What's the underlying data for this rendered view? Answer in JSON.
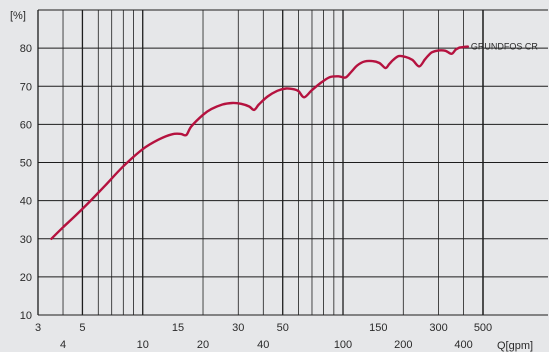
{
  "chart_data": {
    "type": "line",
    "x_scale": "log",
    "xlim": [
      3,
      500
    ],
    "ylim": [
      10,
      90
    ],
    "grid": true,
    "ylabel": "[%]",
    "xlabel": "Q[gpm]",
    "y_ticks": [
      10,
      20,
      30,
      40,
      50,
      60,
      70,
      80
    ],
    "x_ticks": [
      3,
      4,
      5,
      10,
      15,
      20,
      30,
      40,
      50,
      100,
      150,
      200,
      300,
      400,
      500
    ],
    "x_ticks_high": [
      "3",
      "5",
      "15",
      "30",
      "50",
      "150",
      "300",
      "500"
    ],
    "x_ticks_low": [
      "4",
      "10",
      "20",
      "40",
      "100",
      "200",
      "400"
    ],
    "series": [
      {
        "name": "GRUNDFOS CR",
        "color": "#b5123f",
        "x": [
          3.5,
          4.0,
          4.6,
          5.5,
          6.5,
          8.0,
          10.0,
          12.0,
          14.0,
          15.5,
          16.5,
          17.5,
          20.0,
          22.0,
          25.0,
          28.0,
          31.0,
          34.0,
          36.0,
          38.0,
          42.0,
          47.0,
          52.0,
          57.0,
          60.0,
          64.0,
          70.0,
          78.0,
          86.0,
          95.0,
          103.0,
          110.0,
          118.0,
          128.0,
          140.0,
          152.0,
          163.0,
          170.0,
          178.0,
          190.0,
          205.0,
          222.0,
          240.0,
          256.0,
          264.0,
          278.0,
          300.0,
          325.0,
          348.0,
          365.0,
          380.0,
          400.0,
          420.0
        ],
        "y": [
          30,
          33,
          36,
          40,
          44,
          49,
          53.5,
          56,
          57.4,
          57.5,
          57.2,
          59.5,
          62.5,
          64,
          65.2,
          65.6,
          65.4,
          64.7,
          63.8,
          65.2,
          67.3,
          68.8,
          69.4,
          69.2,
          68.7,
          67.1,
          69,
          71,
          72.4,
          72.6,
          72.3,
          73.8,
          75.5,
          76.5,
          76.6,
          76.1,
          74.8,
          75.8,
          76.9,
          77.9,
          77.7,
          76.9,
          75.2,
          77,
          77.8,
          78.9,
          79.4,
          79.3,
          78.5,
          79.6,
          80.1,
          80.3,
          80.4
        ]
      }
    ]
  }
}
